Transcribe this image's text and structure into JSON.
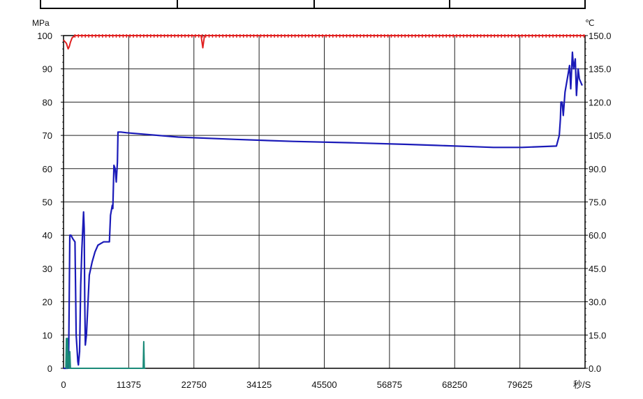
{
  "chart_data": {
    "type": "line",
    "title": "",
    "left_axis": {
      "unit": "MPa",
      "ylim": [
        0,
        100
      ],
      "ticks": [
        "0",
        "10",
        "20",
        "30",
        "40",
        "50",
        "60",
        "70",
        "80",
        "90",
        "100"
      ]
    },
    "right_axis": {
      "unit": "℃",
      "ylim": [
        0,
        150
      ],
      "ticks": [
        "0.0",
        "15.0",
        "30.0",
        "45.0",
        "60.0",
        "75.0",
        "90.0",
        "105.0",
        "120.0",
        "135.0",
        "150.0"
      ]
    },
    "x_axis": {
      "unit": "秒/S",
      "xlim": [
        0,
        91000
      ],
      "ticks": [
        "0",
        "11375",
        "22750",
        "34125",
        "45500",
        "56875",
        "68250",
        "79625"
      ]
    },
    "grid": true,
    "series": [
      {
        "color": "#1a1ab8",
        "axis": "left",
        "x": [
          0,
          700,
          900,
          1000,
          1100,
          1300,
          1600,
          2000,
          2200,
          2500,
          2600,
          2800,
          3000,
          3200,
          3500,
          3600,
          3700,
          3800,
          4000,
          4500,
          5000,
          5500,
          6000,
          6500,
          7000,
          7500,
          8000,
          8200,
          8500,
          8600,
          8800,
          9000,
          9200,
          9400,
          9500,
          9700,
          10000,
          11000,
          20000,
          30000,
          40000,
          50000,
          60000,
          65000,
          70000,
          75000,
          80000,
          86000,
          86500,
          86700,
          86800,
          87000,
          87200,
          87500,
          88000,
          88300,
          88500,
          88800,
          89000,
          89300,
          89500,
          89800,
          90000,
          90500
        ],
        "y": [
          0,
          0,
          5,
          22,
          40,
          40,
          39,
          38,
          10,
          2,
          1,
          5,
          25,
          36,
          47,
          42,
          20,
          7,
          10,
          28,
          32,
          35,
          37,
          37.5,
          38,
          38,
          38,
          46,
          49,
          48,
          61,
          60,
          56,
          62,
          71,
          71,
          71,
          70.8,
          69.5,
          68.8,
          68.2,
          67.8,
          67.3,
          67,
          66.7,
          66.4,
          66.4,
          66.8,
          70,
          75,
          80,
          80,
          76,
          83,
          88,
          91,
          84,
          95,
          90,
          93,
          82,
          90,
          87,
          85
        ]
      },
      {
        "color": "#e02020",
        "axis": "right",
        "x": [
          0,
          500,
          800,
          1000,
          1200,
          1500,
          2000,
          4000,
          10000,
          20000,
          24000,
          24300,
          24600,
          30000,
          40000,
          50000,
          60000,
          70000,
          80000,
          90000,
          91000
        ],
        "y": [
          148,
          146.5,
          144,
          145,
          147,
          149,
          150,
          150,
          150,
          150,
          150,
          144.5,
          150,
          150,
          150,
          150,
          150,
          150,
          150,
          150,
          150
        ]
      },
      {
        "color": "#1a8a78",
        "axis": "left",
        "x": [
          400,
          500,
          550,
          600,
          700,
          900,
          1000,
          1100,
          1200,
          13900,
          14000,
          14100,
          14200,
          14300
        ],
        "y": [
          0,
          9,
          0,
          0,
          9,
          0,
          0,
          5,
          0,
          0,
          8,
          0,
          0,
          0
        ]
      }
    ]
  }
}
